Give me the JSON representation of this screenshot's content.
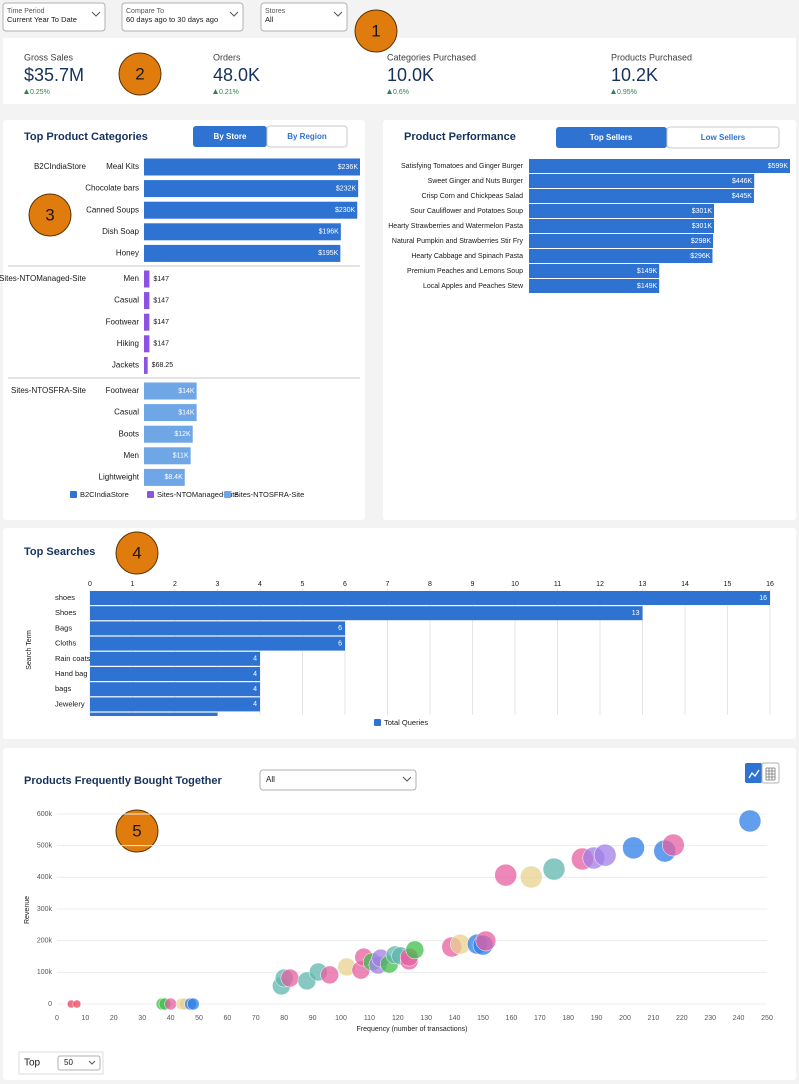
{
  "filters": [
    {
      "label": "Time Period",
      "value": "Current Year To Date"
    },
    {
      "label": "Compare To",
      "value": "60 days ago to 30 days ago"
    },
    {
      "label": "Stores",
      "value": "All"
    }
  ],
  "callouts": [
    "1",
    "2",
    "3",
    "4",
    "5"
  ],
  "kpis": [
    {
      "label": "Gross Sales",
      "value": "$35.7M",
      "change": "0.25%"
    },
    {
      "label": "Orders",
      "value": "48.0K",
      "change": "0.21%"
    },
    {
      "label": "Categories Purchased",
      "value": "10.0K",
      "change": "0.6%"
    },
    {
      "label": "Products Purchased",
      "value": "10.2K",
      "change": "0.95%"
    }
  ],
  "top_product_categories": {
    "type": "bar",
    "title": "Top Product Categories",
    "toggle": [
      "By Store",
      "By Region"
    ],
    "scale": "sqrt",
    "groups": [
      {
        "name": "B2CIndiaStore",
        "color": "#2e72d2",
        "categories": [
          "Meal Kits",
          "Chocolate bars",
          "Canned Soups",
          "Dish Soap",
          "Honey"
        ],
        "values": [
          236000,
          232000,
          230000,
          196000,
          195000
        ],
        "value_labels": [
          "$236K",
          "$232K",
          "$230K",
          "$196K",
          "$195K"
        ]
      },
      {
        "name": "Sites-NTOManaged-Site",
        "color": "#8d52e3",
        "categories": [
          "Men",
          "Casual",
          "Footwear",
          "Hiking",
          "Jackets"
        ],
        "values": [
          147,
          147,
          147,
          147,
          68.25
        ],
        "value_labels": [
          "$147",
          "$147",
          "$147",
          "$147",
          "$68.25"
        ]
      },
      {
        "name": "Sites-NTOSFRA-Site",
        "color": "#6ea6e6",
        "categories": [
          "Footwear",
          "Casual",
          "Boots",
          "Men",
          "Lightweight"
        ],
        "values": [
          14000,
          14000,
          12000,
          11000,
          8400
        ],
        "value_labels": [
          "$14K",
          "$14K",
          "$12K",
          "$11K",
          "$8.4K"
        ]
      }
    ]
  },
  "product_performance": {
    "type": "bar",
    "title": "Product Performance",
    "toggle": [
      "Top Sellers",
      "Low Sellers"
    ],
    "scale": "sqrt",
    "color": "#2e72d2",
    "categories": [
      "Satisfying Tomatoes and Ginger Burger",
      "Sweet Ginger and Nuts Burger",
      "Crisp Corn and Chickpeas Salad",
      "Sour Cauliflower and Potatoes Soup",
      "Hearty Strawberries and Watermelon Pasta",
      "Natural Pumpkin and Strawberries Stir Fry",
      "Hearty Cabbage and Spinach Pasta",
      "Premium Peaches and Lemons Soup",
      "Local Apples and Peaches Stew"
    ],
    "values": [
      599000,
      446000,
      445000,
      301000,
      301000,
      298000,
      296000,
      149000,
      149000
    ],
    "value_labels": [
      "$599K",
      "$446K",
      "$445K",
      "$301K",
      "$301K",
      "$298K",
      "$296K",
      "$149K",
      "$149K"
    ]
  },
  "top_searches": {
    "type": "bar",
    "title": "Top Searches",
    "y_label": "Search Term",
    "categories": [
      "shoes",
      "Shoes",
      "Bags",
      "Cloths",
      "Rain coats",
      "Hand bag",
      "bags",
      "Jewelery",
      null
    ],
    "series": [
      {
        "name": "Total Queries",
        "color": "#2e72d2",
        "values": [
          16,
          13,
          6,
          6,
          4,
          4,
          4,
          4,
          3
        ]
      }
    ],
    "xlim": [
      0,
      16
    ],
    "xticks": [
      0,
      1,
      2,
      3,
      4,
      5,
      6,
      7,
      8,
      9,
      10,
      11,
      12,
      13,
      14,
      15,
      16
    ],
    "grid": true
  },
  "bought_together": {
    "type": "scatter",
    "title": "Products Frequently Bought Together",
    "filter": "All",
    "x_label": "Frequency (number of transactions)",
    "y_label": "Revenue",
    "xlim": [
      0,
      250
    ],
    "xticks": [
      0,
      10,
      20,
      30,
      40,
      50,
      60,
      70,
      80,
      90,
      100,
      110,
      120,
      130,
      140,
      150,
      160,
      170,
      180,
      190,
      200,
      210,
      220,
      230,
      240,
      250
    ],
    "ylim": [
      0,
      600000
    ],
    "yticks": [
      0,
      {
        "value": 100000,
        "label": "100k"
      },
      {
        "value": 200000,
        "label": "200k"
      },
      {
        "value": 300000,
        "label": "300k"
      },
      {
        "value": 400000,
        "label": "400k"
      },
      {
        "value": 500000,
        "label": "500k"
      },
      {
        "value": 600000,
        "label": "600k"
      }
    ],
    "grid": true,
    "series": [
      {
        "x": [
          5,
          7,
          37,
          38,
          40,
          44,
          45,
          47,
          48,
          79,
          80,
          82,
          88,
          92,
          96,
          102,
          107,
          108,
          111,
          113,
          114,
          117,
          119,
          121,
          124,
          124,
          126,
          139,
          142,
          148,
          150,
          151,
          158,
          167,
          175,
          185,
          189,
          193,
          203,
          214,
          217,
          244
        ],
        "values": [
          0,
          0,
          0,
          0,
          0,
          0,
          0,
          0,
          0,
          57000,
          82000,
          82000,
          73000,
          101000,
          92000,
          117000,
          107000,
          148000,
          133000,
          123000,
          145000,
          126000,
          155000,
          152000,
          136000,
          148000,
          171000,
          180000,
          189000,
          189000,
          186000,
          199000,
          407000,
          401000,
          426000,
          458000,
          461000,
          470000,
          493000,
          483000,
          502000,
          578000
        ],
        "sizes": [
          3,
          3,
          5,
          5,
          5,
          5,
          5,
          5,
          5,
          8,
          8,
          8,
          8,
          8,
          8,
          8,
          8,
          8,
          8,
          8,
          8,
          8,
          8,
          8,
          8,
          8,
          8,
          9,
          9,
          9,
          9,
          9,
          10,
          10,
          10,
          10,
          10,
          10,
          10,
          10,
          10,
          10
        ],
        "colors": [
          "#e8445c",
          "#e8445c",
          "#3fbd4a",
          "#3fbd4a",
          "#e55fa0",
          "#e8d08f",
          "#e8d08f",
          "#2f7ee8",
          "#2f7ee8",
          "#5fb5ad",
          "#5fb5ad",
          "#e55fa0",
          "#5fb5ad",
          "#5fb5ad",
          "#e55fa0",
          "#e8d08f",
          "#e55fa0",
          "#e55fa0",
          "#3fbd4a",
          "#a27ee8",
          "#a27ee8",
          "#3fbd4a",
          "#5fb5ad",
          "#5fb5ad",
          "#e55fa0",
          "#e55fa0",
          "#3fbd4a",
          "#e55fa0",
          "#e8d08f",
          "#2f7ee8",
          "#2f7ee8",
          "#e55fa0",
          "#e55fa0",
          "#e8d08f",
          "#5fb5ad",
          "#e55fa0",
          "#a27ee8",
          "#a27ee8",
          "#2f7ee8",
          "#2f7ee8",
          "#e55fa0",
          "#2f7ee8"
        ]
      }
    ]
  },
  "top_selector": {
    "label": "Top",
    "value": "50"
  }
}
